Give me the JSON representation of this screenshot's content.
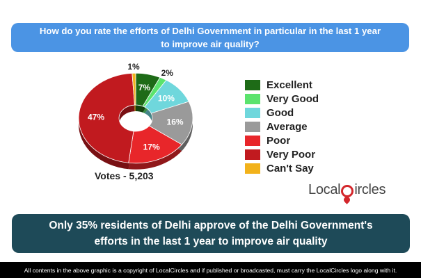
{
  "question": "How do you rate the efforts of Delhi Government in particular in the last 1 year to improve air quality?",
  "chart_data": {
    "type": "pie",
    "categories": [
      "Excellent",
      "Very Good",
      "Good",
      "Average",
      "Poor",
      "Very Poor",
      "Can't Say"
    ],
    "values": [
      7,
      2,
      10,
      16,
      17,
      47,
      1
    ],
    "value_labels": [
      "7%",
      "2%",
      "10%",
      "16%",
      "17%",
      "47%",
      "1%"
    ],
    "colors": [
      "#1e6b17",
      "#5be36d",
      "#6fd7dc",
      "#9a9a9a",
      "#e8262a",
      "#c11a1f",
      "#f2b21b"
    ],
    "legend_position": "right"
  },
  "votes_label": "Votes - 5,203",
  "logo": {
    "text_before": "Local",
    "text_after": "ircles"
  },
  "conclusion": "Only 35% residents of Delhi approve of the Delhi Government's efforts in the last 1 year to improve air quality",
  "footer": "All contents in the above graphic is a copyright of LocalCircles and if published or broadcasted, must carry the LocalCircles logo along with it."
}
